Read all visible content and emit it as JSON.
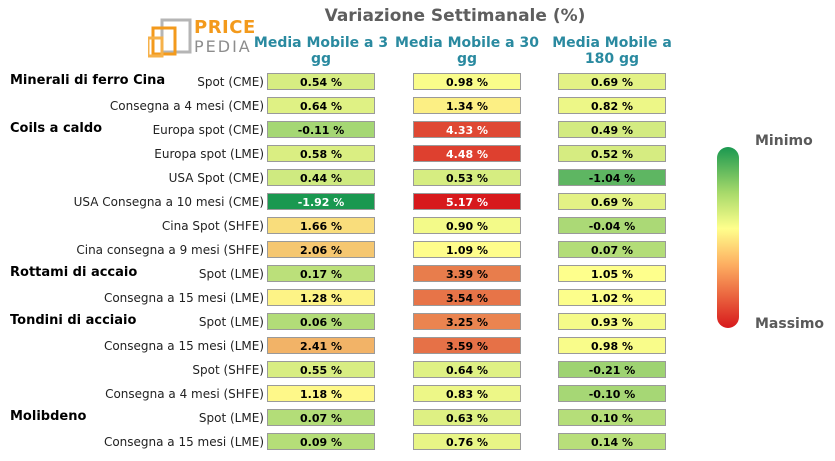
{
  "logo": {
    "line1": "PRICE",
    "line2": "PEDIA"
  },
  "chart_data": {
    "type": "table",
    "title": "Variazione Settimanale (%)",
    "columns": [
      "Media Mobile a 3 gg",
      "Media Mobile a 30 gg",
      "Media Mobile a 180 gg"
    ],
    "rows": [
      {
        "group": "Minerali di ferro Cina",
        "label": "Spot (CME)",
        "values": [
          0.54,
          0.98,
          0.69
        ]
      },
      {
        "group": "",
        "label": "Consegna a 4 mesi (CME)",
        "values": [
          0.64,
          1.34,
          0.82
        ]
      },
      {
        "group": "Coils a caldo",
        "label": "Europa spot (CME)",
        "values": [
          -0.11,
          4.33,
          0.49
        ]
      },
      {
        "group": "",
        "label": "Europa spot (LME)",
        "values": [
          0.58,
          4.48,
          0.52
        ]
      },
      {
        "group": "",
        "label": "USA Spot (CME)",
        "values": [
          0.44,
          0.53,
          -1.04
        ]
      },
      {
        "group": "",
        "label": "USA Consegna a 10 mesi (CME)",
        "values": [
          -1.92,
          5.17,
          0.69
        ]
      },
      {
        "group": "",
        "label": "Cina Spot (SHFE)",
        "values": [
          1.66,
          0.9,
          -0.04
        ]
      },
      {
        "group": "",
        "label": "Cina consegna a 9 mesi (SHFE)",
        "values": [
          2.06,
          1.09,
          0.07
        ]
      },
      {
        "group": "Rottami di accaio",
        "label": "Spot (LME)",
        "values": [
          0.17,
          3.39,
          1.05
        ]
      },
      {
        "group": "",
        "label": "Consegna a 15 mesi (LME)",
        "values": [
          1.28,
          3.54,
          1.02
        ]
      },
      {
        "group": "Tondini di acciaio",
        "label": "Spot (LME)",
        "values": [
          0.06,
          3.25,
          0.93
        ]
      },
      {
        "group": "",
        "label": "Consegna a 15 mesi (LME)",
        "values": [
          2.41,
          3.59,
          0.98
        ]
      },
      {
        "group": "",
        "label": "Spot (SHFE)",
        "values": [
          0.55,
          0.64,
          -0.21
        ]
      },
      {
        "group": "",
        "label": "Consegna a 4 mesi (SHFE)",
        "values": [
          1.18,
          0.83,
          -0.1
        ]
      },
      {
        "group": "Molibdeno",
        "label": "Spot (LME)",
        "values": [
          0.07,
          0.63,
          0.1
        ]
      },
      {
        "group": "",
        "label": "Consegna a 15 mesi (LME)",
        "values": [
          0.09,
          0.76,
          0.14
        ]
      }
    ],
    "value_suffix": " %",
    "legend": {
      "min_label": "Minimo",
      "max_label": "Massimo",
      "placement": "right"
    },
    "color_scale": {
      "min_color": "#1a9850",
      "mid_color": "#ffff8c",
      "max_color": "#d7191c"
    }
  }
}
